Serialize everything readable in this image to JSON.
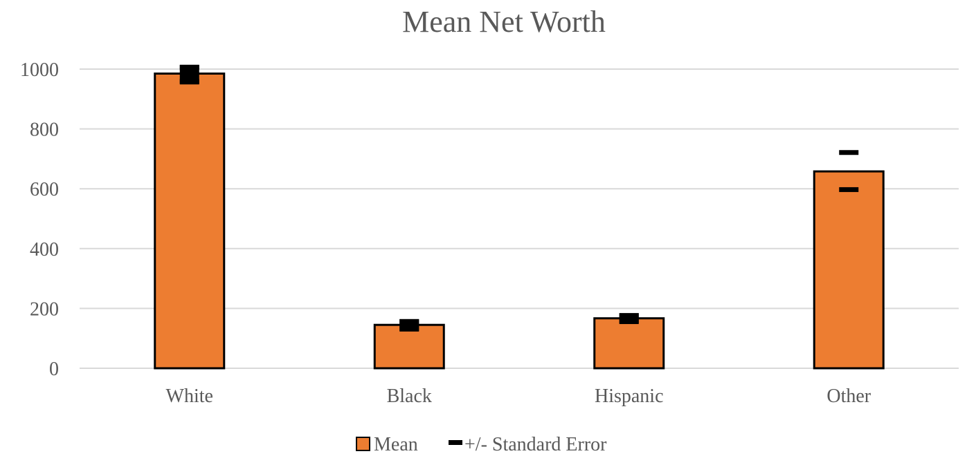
{
  "chart_data": {
    "type": "bar",
    "title": "Mean Net Worth",
    "categories": [
      "White",
      "Black",
      "Hispanic",
      "Other"
    ],
    "series": [
      {
        "name": "Mean",
        "values": [
          985,
          145,
          167,
          658
        ],
        "color": "#ed7d31"
      }
    ],
    "error_bars": {
      "name": "+/- Standard Error",
      "upper": [
        1005,
        155,
        175,
        720
      ],
      "lower": [
        958,
        132,
        157,
        596
      ],
      "color": "#000000"
    },
    "yticks": [
      0,
      200,
      400,
      600,
      800,
      1000
    ],
    "ylim": [
      0,
      1000
    ],
    "grid": true,
    "legend_position": "bottom"
  }
}
